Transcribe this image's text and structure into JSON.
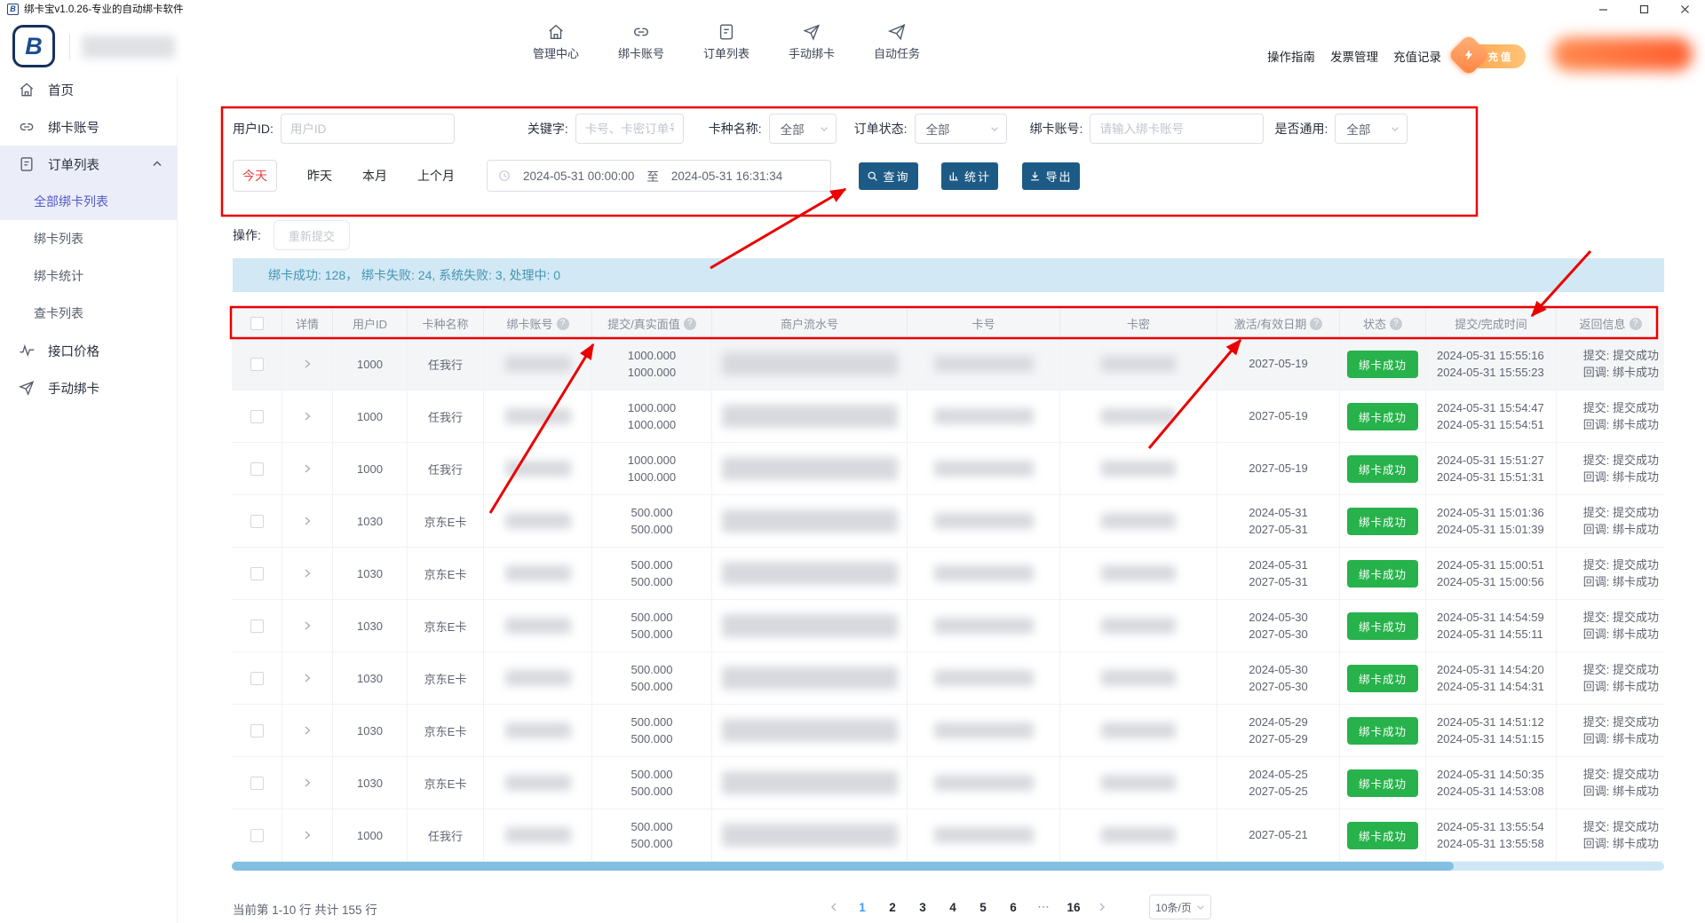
{
  "window": {
    "title": "绑卡宝v1.0.26-专业的自动绑卡软件"
  },
  "header": {
    "nav": [
      {
        "label": "管理中心"
      },
      {
        "label": "绑卡账号"
      },
      {
        "label": "订单列表"
      },
      {
        "label": "手动绑卡"
      },
      {
        "label": "自动任务"
      }
    ],
    "links": {
      "guide": "操作指南",
      "invoice": "发票管理",
      "recharge_history": "充值记录"
    },
    "recharge_button": "充值"
  },
  "sidebar": {
    "home": "首页",
    "bind_account": "绑卡账号",
    "order_list": "订单列表",
    "submenu_all": "全部绑卡列表",
    "submenu_bind": "绑卡列表",
    "submenu_stats": "绑卡统计",
    "submenu_query": "查卡列表",
    "api_price": "接口价格",
    "manual_bind": "手动绑卡"
  },
  "filters": {
    "user_id_label": "用户ID:",
    "user_id_placeholder": "用户ID",
    "keyword_label": "关键字:",
    "keyword_placeholder": "卡号、卡密订单号",
    "card_type_label": "卡种名称:",
    "card_type_value": "全部",
    "order_status_label": "订单状态:",
    "order_status_value": "全部",
    "bind_account_label": "绑卡账号:",
    "bind_account_placeholder": "请输入绑卡账号",
    "universal_label": "是否通用:",
    "universal_value": "全部",
    "quick_today": "今天",
    "quick_yesterday": "昨天",
    "quick_month": "本月",
    "quick_last_month": "上个月",
    "date_start": "2024-05-31 00:00:00",
    "date_sep": "至",
    "date_end": "2024-05-31 16:31:34",
    "search_button": "查询",
    "stats_button": "统计",
    "export_button": "导出"
  },
  "actions": {
    "label": "操作:",
    "resubmit": "重新提交"
  },
  "summary": {
    "text": "绑卡成功: 128， 绑卡失败: 24, 系统失败: 3, 处理中: 0"
  },
  "table": {
    "headers": [
      {
        "label": "详情",
        "help": false
      },
      {
        "label": "用户ID",
        "help": false
      },
      {
        "label": "卡种名称",
        "help": false
      },
      {
        "label": "绑卡账号",
        "help": true
      },
      {
        "label": "提交/真实面值",
        "help": true
      },
      {
        "label": "商户流水号",
        "help": false
      },
      {
        "label": "卡号",
        "help": false
      },
      {
        "label": "卡密",
        "help": false
      },
      {
        "label": "激活/有效日期",
        "help": true
      },
      {
        "label": "状态",
        "help": true
      },
      {
        "label": "提交/完成时间",
        "help": false
      },
      {
        "label": "返回信息",
        "help": true
      }
    ],
    "rows": [
      {
        "user_id": "1000",
        "card_type": "任我行",
        "value1": "1000.000",
        "value2": "1000.000",
        "date1": "2027-05-19",
        "date2": "",
        "status": "绑卡成功",
        "time1": "2024-05-31 15:55:16",
        "time2": "2024-05-31 15:55:23",
        "ret1": "提交: 提交成功",
        "ret2": "回调: 绑卡成功"
      },
      {
        "user_id": "1000",
        "card_type": "任我行",
        "value1": "1000.000",
        "value2": "1000.000",
        "date1": "2027-05-19",
        "date2": "",
        "status": "绑卡成功",
        "time1": "2024-05-31 15:54:47",
        "time2": "2024-05-31 15:54:51",
        "ret1": "提交: 提交成功",
        "ret2": "回调: 绑卡成功"
      },
      {
        "user_id": "1000",
        "card_type": "任我行",
        "value1": "1000.000",
        "value2": "1000.000",
        "date1": "2027-05-19",
        "date2": "",
        "status": "绑卡成功",
        "time1": "2024-05-31 15:51:27",
        "time2": "2024-05-31 15:51:31",
        "ret1": "提交: 提交成功",
        "ret2": "回调: 绑卡成功"
      },
      {
        "user_id": "1030",
        "card_type": "京东E卡",
        "value1": "500.000",
        "value2": "500.000",
        "date1": "2024-05-31",
        "date2": "2027-05-31",
        "status": "绑卡成功",
        "time1": "2024-05-31 15:01:36",
        "time2": "2024-05-31 15:01:39",
        "ret1": "提交: 提交成功",
        "ret2": "回调: 绑卡成功"
      },
      {
        "user_id": "1030",
        "card_type": "京东E卡",
        "value1": "500.000",
        "value2": "500.000",
        "date1": "2024-05-31",
        "date2": "2027-05-31",
        "status": "绑卡成功",
        "time1": "2024-05-31 15:00:51",
        "time2": "2024-05-31 15:00:56",
        "ret1": "提交: 提交成功",
        "ret2": "回调: 绑卡成功"
      },
      {
        "user_id": "1030",
        "card_type": "京东E卡",
        "value1": "500.000",
        "value2": "500.000",
        "date1": "2024-05-30",
        "date2": "2027-05-30",
        "status": "绑卡成功",
        "time1": "2024-05-31 14:54:59",
        "time2": "2024-05-31 14:55:11",
        "ret1": "提交: 提交成功",
        "ret2": "回调: 绑卡成功"
      },
      {
        "user_id": "1030",
        "card_type": "京东E卡",
        "value1": "500.000",
        "value2": "500.000",
        "date1": "2024-05-30",
        "date2": "2027-05-30",
        "status": "绑卡成功",
        "time1": "2024-05-31 14:54:20",
        "time2": "2024-05-31 14:54:31",
        "ret1": "提交: 提交成功",
        "ret2": "回调: 绑卡成功"
      },
      {
        "user_id": "1030",
        "card_type": "京东E卡",
        "value1": "500.000",
        "value2": "500.000",
        "date1": "2024-05-29",
        "date2": "2027-05-29",
        "status": "绑卡成功",
        "time1": "2024-05-31 14:51:12",
        "time2": "2024-05-31 14:51:15",
        "ret1": "提交: 提交成功",
        "ret2": "回调: 绑卡成功"
      },
      {
        "user_id": "1030",
        "card_type": "京东E卡",
        "value1": "500.000",
        "value2": "500.000",
        "date1": "2024-05-25",
        "date2": "2027-05-25",
        "status": "绑卡成功",
        "time1": "2024-05-31 14:50:35",
        "time2": "2024-05-31 14:53:08",
        "ret1": "提交: 提交成功",
        "ret2": "回调: 绑卡成功"
      },
      {
        "user_id": "1000",
        "card_type": "任我行",
        "value1": "500.000",
        "value2": "500.000",
        "date1": "2027-05-21",
        "date2": "",
        "status": "绑卡成功",
        "time1": "2024-05-31 13:55:54",
        "time2": "2024-05-31 13:55:58",
        "ret1": "提交: 提交成功",
        "ret2": "回调: 绑卡成功"
      }
    ]
  },
  "pagination": {
    "info": "当前第 1-10 行 共计 155 行",
    "pages": [
      "1",
      "2",
      "3",
      "4",
      "5",
      "6",
      "⋯",
      "16"
    ],
    "active": "1",
    "page_size": "10条/页"
  },
  "logo_letter": "B",
  "colors": {
    "accent_blue": "#3e9ef7",
    "navy_button": "#1d5b86",
    "success_green": "#27b24b",
    "annotation_red": "#ea0000",
    "summary_bg": "#d2e8f4",
    "active_purple": "#5459c8",
    "recharge_orange": "#ff9440"
  }
}
